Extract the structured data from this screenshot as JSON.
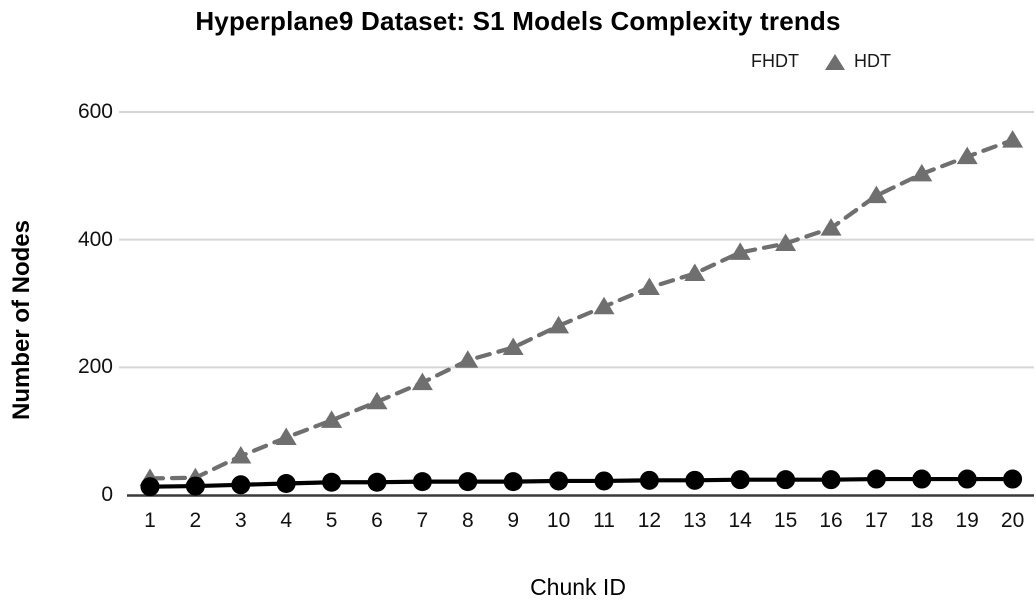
{
  "chart_data": {
    "type": "line",
    "title": "Hyperplane9 Dataset: S1 Models Complexity trends",
    "xlabel": "Chunk ID",
    "ylabel": "Number of Nodes",
    "x": [
      1,
      2,
      3,
      4,
      5,
      6,
      7,
      8,
      9,
      10,
      11,
      12,
      13,
      14,
      15,
      16,
      17,
      18,
      19,
      20
    ],
    "series": [
      {
        "name": "HDT",
        "marker": "triangle",
        "line_style": "dashed",
        "color": "#6f6f6f",
        "values": [
          26,
          27,
          61,
          90,
          117,
          146,
          176,
          211,
          231,
          265,
          295,
          325,
          347,
          380,
          394,
          418,
          469,
          503,
          530,
          556
        ]
      },
      {
        "name": "FHDT",
        "marker": "circle",
        "line_style": "solid",
        "color": "#000000",
        "values": [
          13,
          14,
          16,
          18,
          20,
          20,
          21,
          21,
          21,
          22,
          22,
          23,
          23,
          24,
          24,
          24,
          25,
          25,
          25,
          25
        ]
      }
    ],
    "yticks": [
      0,
      200,
      400,
      600
    ],
    "ylim": [
      0,
      620
    ],
    "grid": "horizontal",
    "legend_position": "top-right",
    "colors": {
      "grid": "#d6d6d6",
      "axis": "#3a3a3a",
      "tick_text": "#111111"
    }
  }
}
